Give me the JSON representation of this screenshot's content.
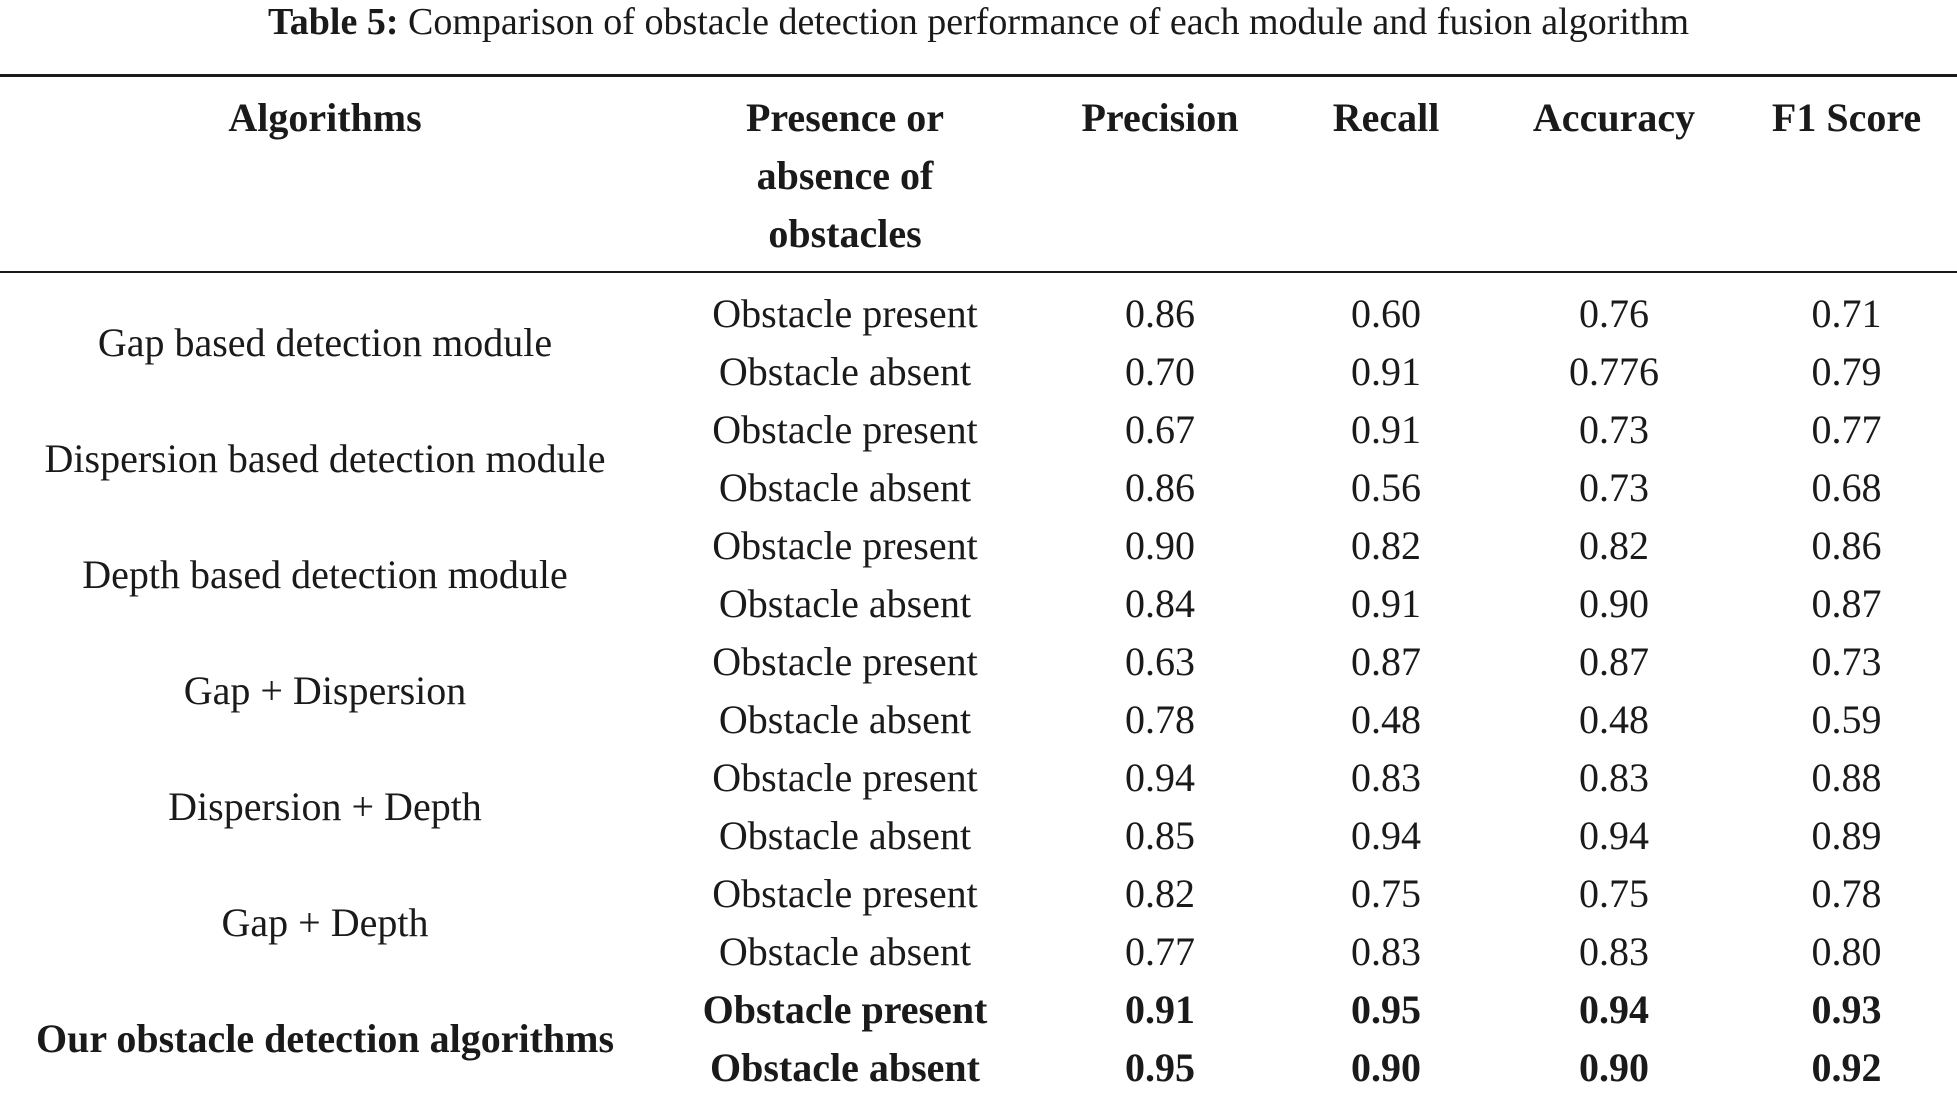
{
  "caption": {
    "label": "Table 5:",
    "text": "Comparison of obstacle detection performance of each module and fusion algorithm"
  },
  "headers": {
    "algorithms": "Algorithms",
    "presence_line1": "Presence or",
    "presence_line2": "absence of",
    "presence_line3": "obstacles",
    "precision": "Precision",
    "recall": "Recall",
    "accuracy": "Accuracy",
    "f1": "F1 Score"
  },
  "groups": [
    {
      "name": "Gap based detection module",
      "rows": [
        {
          "presence": "Obstacle present",
          "precision": "0.86",
          "recall": "0.60",
          "accuracy": "0.76",
          "f1": "0.71"
        },
        {
          "presence": "Obstacle absent",
          "precision": "0.70",
          "recall": "0.91",
          "accuracy": "0.776",
          "f1": "0.79"
        }
      ]
    },
    {
      "name": "Dispersion based detection module",
      "rows": [
        {
          "presence": "Obstacle present",
          "precision": "0.67",
          "recall": "0.91",
          "accuracy": "0.73",
          "f1": "0.77"
        },
        {
          "presence": "Obstacle absent",
          "precision": "0.86",
          "recall": "0.56",
          "accuracy": "0.73",
          "f1": "0.68"
        }
      ]
    },
    {
      "name": "Depth based detection module",
      "rows": [
        {
          "presence": "Obstacle present",
          "precision": "0.90",
          "recall": "0.82",
          "accuracy": "0.82",
          "f1": "0.86"
        },
        {
          "presence": "Obstacle absent",
          "precision": "0.84",
          "recall": "0.91",
          "accuracy": "0.90",
          "f1": "0.87"
        }
      ]
    },
    {
      "name": "Gap + Dispersion",
      "rows": [
        {
          "presence": "Obstacle present",
          "precision": "0.63",
          "recall": "0.87",
          "accuracy": "0.87",
          "f1": "0.73"
        },
        {
          "presence": "Obstacle absent",
          "precision": "0.78",
          "recall": "0.48",
          "accuracy": "0.48",
          "f1": "0.59"
        }
      ]
    },
    {
      "name": "Dispersion + Depth",
      "rows": [
        {
          "presence": "Obstacle present",
          "precision": "0.94",
          "recall": "0.83",
          "accuracy": "0.83",
          "f1": "0.88"
        },
        {
          "presence": "Obstacle absent",
          "precision": "0.85",
          "recall": "0.94",
          "accuracy": "0.94",
          "f1": "0.89"
        }
      ]
    },
    {
      "name": "Gap + Depth",
      "rows": [
        {
          "presence": "Obstacle present",
          "precision": "0.82",
          "recall": "0.75",
          "accuracy": "0.75",
          "f1": "0.78"
        },
        {
          "presence": "Obstacle absent",
          "precision": "0.77",
          "recall": "0.83",
          "accuracy": "0.83",
          "f1": "0.80"
        }
      ]
    },
    {
      "name": "Our obstacle detection algorithms",
      "rows": [
        {
          "presence": "Obstacle present",
          "precision": "0.91",
          "recall": "0.95",
          "accuracy": "0.94",
          "f1": "0.93"
        },
        {
          "presence": "Obstacle absent",
          "precision": "0.95",
          "recall": "0.90",
          "accuracy": "0.90",
          "f1": "0.92"
        }
      ]
    }
  ]
}
